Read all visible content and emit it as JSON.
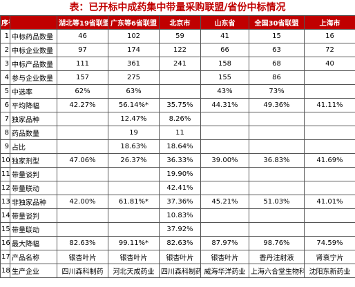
{
  "header": {
    "title": "表：已开标中成药集中带量采购联盟/省份中标情况"
  },
  "table": {
    "columns": [
      "序号",
      null,
      "湖北等19省联盟",
      "广东等6省联盟",
      "北京市",
      "山东省",
      "全国30省联盟",
      "上海市"
    ],
    "rows": [
      [
        "1",
        "中标药品数量",
        "46",
        "102",
        "59",
        "41",
        "15",
        "16"
      ],
      [
        "2",
        "中标企业数量",
        "97",
        "174",
        "122",
        "66",
        "63",
        "72"
      ],
      [
        "3",
        "中标产品数量",
        "111",
        "361",
        "241",
        "158",
        "68",
        "40"
      ],
      [
        "4",
        "参与企业数量",
        "157",
        "275",
        null,
        "155",
        "86",
        null
      ],
      [
        "5",
        "中选率",
        "62%",
        "63%",
        null,
        "43%",
        "73%",
        null
      ],
      [
        "6",
        "平均降幅",
        "42.27%",
        "56.14%*",
        "35.75%",
        "44.31%",
        "49.36%",
        "41.11%"
      ],
      [
        "7",
        "独家品种",
        null,
        "12.47%",
        "8.26%",
        null,
        null,
        null
      ],
      [
        "8",
        "药品数量",
        null,
        "19",
        "11",
        null,
        null,
        null
      ],
      [
        "9",
        "占比",
        null,
        "18.63%",
        "18.64%",
        null,
        null,
        null
      ],
      [
        "10",
        "独家剂型",
        "47.06%",
        "26.37%",
        "36.33%",
        "39.00%",
        "36.83%",
        "41.69%"
      ],
      [
        "11",
        "带量谈判",
        null,
        null,
        "19.90%",
        null,
        null,
        null
      ],
      [
        "12",
        "带量联动",
        null,
        null,
        "42.41%",
        null,
        null,
        null
      ],
      [
        "13",
        "非独家品种",
        "42.00%",
        "61.81%*",
        "37.36%",
        "45.21%",
        "51.03%",
        "41.01%"
      ],
      [
        "14",
        "带量谈判",
        null,
        null,
        "10.83%",
        null,
        null,
        null
      ],
      [
        "15",
        "带量联动",
        null,
        null,
        "37.92%",
        null,
        null,
        null
      ],
      [
        "16",
        "最大降幅",
        "82.63%",
        "99.11%*",
        "82.63%",
        "87.97%",
        "98.76%",
        "74.59%"
      ],
      [
        "17",
        "产品名称",
        "银杏叶片",
        "银杏叶片",
        "银杏叶片",
        "银杏叶片",
        "香丹注射液",
        "肾衰宁片"
      ],
      [
        "18",
        "生产企业",
        "四川森科制药",
        "河北天成药业",
        "四川森科制药",
        "威海华洋药业",
        "上海六合堂生物科技",
        "沈阳东新药业"
      ]
    ]
  }
}
